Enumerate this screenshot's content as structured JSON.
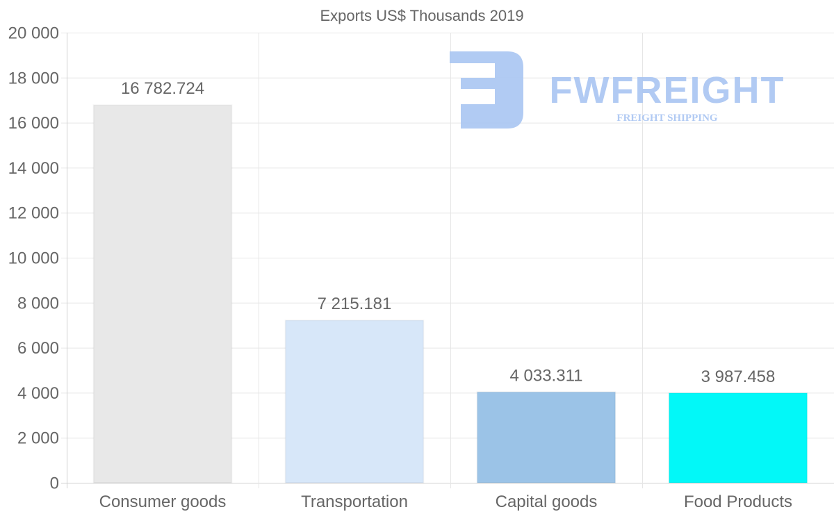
{
  "chart_data": {
    "type": "bar",
    "title": "Exports US$ Thousands 2019",
    "xlabel": "",
    "ylabel": "",
    "ylim": [
      0,
      20000
    ],
    "yticks": [
      0,
      2000,
      4000,
      6000,
      8000,
      10000,
      12000,
      14000,
      16000,
      18000,
      20000
    ],
    "ytick_labels": [
      "0",
      "2 000",
      "4 000",
      "6 000",
      "8 000",
      "10 000",
      "12 000",
      "14 000",
      "16 000",
      "18 000",
      "20 000"
    ],
    "categories": [
      "Consumer goods",
      "Transportation",
      "Capital goods",
      "Food Products"
    ],
    "values": [
      16782.724,
      7215.181,
      4033.311,
      3987.458
    ],
    "data_labels": [
      "16 782.724",
      "7 215.181",
      "4 033.311",
      "3 987.458"
    ],
    "colors": [
      "#e8e8e8",
      "#d7e7f9",
      "#9bc3e7",
      "#02f8f8"
    ],
    "grid": true,
    "legend": "none"
  },
  "watermark": {
    "brand": "FWFREIGHT",
    "tagline": "FREIGHT SHIPPING",
    "color": "#a9c5f2"
  }
}
